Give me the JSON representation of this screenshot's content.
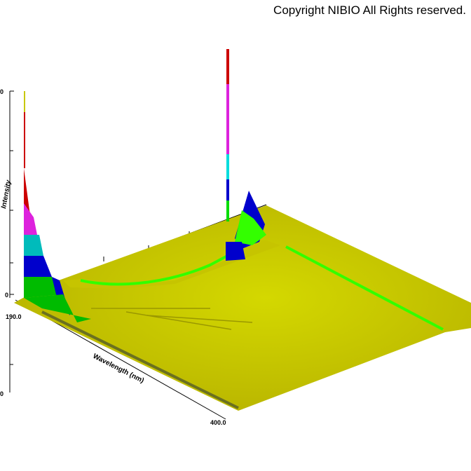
{
  "header": {
    "copyright": "Copyright NIBIO All Rights reserved."
  },
  "plot": {
    "y_axis_label": "Intensity",
    "x_axis_label": "Wavelength (nm)",
    "x_tick_labels": [
      "190.0",
      "400.0"
    ],
    "y_tick_labels": [
      "0",
      "0",
      "0"
    ]
  }
}
